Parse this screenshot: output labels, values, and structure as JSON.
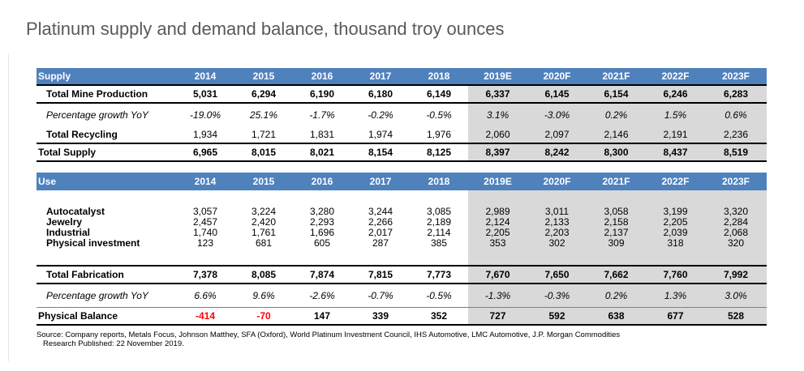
{
  "title": "Platinum supply and demand balance, thousand troy ounces",
  "years": [
    "2014",
    "2015",
    "2016",
    "2017",
    "2018",
    "2019E",
    "2020F",
    "2021F",
    "2022F",
    "2023F"
  ],
  "supply_header": "Supply",
  "use_header": "Use",
  "supply_rows": [
    {
      "label": "Total Mine Production",
      "values": [
        "5,031",
        "6,294",
        "6,190",
        "6,180",
        "6,149",
        "6,337",
        "6,145",
        "6,154",
        "6,246",
        "6,283"
      ]
    },
    {
      "label": "Percentage growth YoY",
      "values": [
        "-19.0%",
        "25.1%",
        "-1.7%",
        "-0.2%",
        "-0.5%",
        "3.1%",
        "-3.0%",
        "0.2%",
        "1.5%",
        "0.6%"
      ]
    },
    {
      "label": "Total Recycling",
      "values": [
        "1,934",
        "1,721",
        "1,831",
        "1,974",
        "1,976",
        "2,060",
        "2,097",
        "2,146",
        "2,191",
        "2,236"
      ]
    },
    {
      "label": "Total Supply",
      "values": [
        "6,965",
        "8,015",
        "8,021",
        "8,154",
        "8,125",
        "8,397",
        "8,242",
        "8,300",
        "8,437",
        "8,519"
      ]
    }
  ],
  "use_rows": [
    {
      "label": "Autocatalyst",
      "values": [
        "3,057",
        "3,224",
        "3,280",
        "3,244",
        "3,085",
        "2,989",
        "3,011",
        "3,058",
        "3,199",
        "3,320"
      ]
    },
    {
      "label": "Jewelry",
      "values": [
        "2,457",
        "2,420",
        "2,293",
        "2,266",
        "2,189",
        "2,124",
        "2,133",
        "2,158",
        "2,205",
        "2,284"
      ]
    },
    {
      "label": "Industrial",
      "values": [
        "1,740",
        "1,761",
        "1,696",
        "2,017",
        "2,114",
        "2,205",
        "2,203",
        "2,137",
        "2,039",
        "2,068"
      ]
    },
    {
      "label": "Physical investment",
      "values": [
        "123",
        "681",
        "605",
        "287",
        "385",
        "353",
        "302",
        "309",
        "318",
        "320"
      ]
    }
  ],
  "fabrication_row": {
    "label": "Total Fabrication",
    "values": [
      "7,378",
      "8,085",
      "7,874",
      "7,815",
      "7,773",
      "7,670",
      "7,650",
      "7,662",
      "7,760",
      "7,992"
    ]
  },
  "use_growth_row": {
    "label": "Percentage growth YoY",
    "values": [
      "6.6%",
      "9.6%",
      "-2.6%",
      "-0.7%",
      "-0.5%",
      "-1.3%",
      "-0.3%",
      "0.2%",
      "1.3%",
      "3.0%"
    ]
  },
  "balance_row": {
    "label": "Physical Balance",
    "values": [
      "-414",
      "-70",
      "147",
      "339",
      "352",
      "727",
      "592",
      "638",
      "677",
      "528"
    ]
  },
  "colors": {
    "header_bg": "#4f81bd",
    "shade": "#d9d9d9",
    "negative": "#ff0000"
  },
  "source_line1": "Source: Company reports, Metals Focus, Johnson Matthey, SFA (Oxford), World Platinum Investment Council, IHS Automotive, LMC Automotive, J.P. Morgan Commodities",
  "source_line2": "Research Published: 22 November 2019."
}
